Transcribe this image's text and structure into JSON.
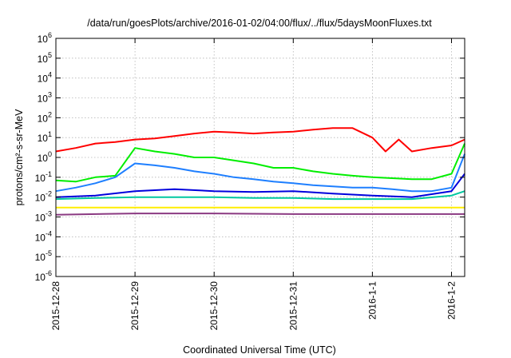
{
  "chart_data": {
    "type": "line",
    "title": "/data/run/goesPlots/archive/2016-01-02/04:00/flux/../flux/5daysMoonFluxes.txt",
    "xlabel": "Coordinated Universal Time (UTC)",
    "ylabel": "protons/cm²-s-sr-MeV",
    "yscale": "log",
    "ylim": [
      1e-06,
      1000000.0
    ],
    "y_ticks": [
      {
        "value": 1e-06,
        "base": "10",
        "exp": "-6"
      },
      {
        "value": 1e-05,
        "base": "10",
        "exp": "-5"
      },
      {
        "value": 0.0001,
        "base": "10",
        "exp": "-4"
      },
      {
        "value": 0.001,
        "base": "10",
        "exp": "-3"
      },
      {
        "value": 0.01,
        "base": "10",
        "exp": "-2"
      },
      {
        "value": 0.1,
        "base": "10",
        "exp": "-1"
      },
      {
        "value": 1.0,
        "base": "10",
        "exp": "0"
      },
      {
        "value": 10.0,
        "base": "10",
        "exp": "1"
      },
      {
        "value": 100.0,
        "base": "10",
        "exp": "2"
      },
      {
        "value": 1000.0,
        "base": "10",
        "exp": "3"
      },
      {
        "value": 10000.0,
        "base": "10",
        "exp": "4"
      },
      {
        "value": 100000.0,
        "base": "10",
        "exp": "5"
      },
      {
        "value": 1000000.0,
        "base": "10",
        "exp": "6"
      }
    ],
    "xlim": [
      "2015-12-28T00:00",
      "2016-01-02T04:00"
    ],
    "x_ticks": [
      {
        "date": "2015-12-28T00:00",
        "label": "2015-12-28"
      },
      {
        "date": "2015-12-29T00:00",
        "label": "2015-12-29"
      },
      {
        "date": "2015-12-30T00:00",
        "label": "2015-12-30"
      },
      {
        "date": "2015-12-31T00:00",
        "label": "2015-12-31"
      },
      {
        "date": "2016-01-01T00:00",
        "label": "2016-1-1"
      },
      {
        "date": "2016-01-02T00:00",
        "label": "2016-1-2"
      }
    ],
    "grid": true,
    "legend": "none",
    "series": [
      {
        "color": "#ff0000",
        "points": [
          [
            "2015-12-28T00:00",
            2
          ],
          [
            "2015-12-28T06:00",
            3
          ],
          [
            "2015-12-28T12:00",
            5
          ],
          [
            "2015-12-28T18:00",
            6
          ],
          [
            "2015-12-29T00:00",
            8
          ],
          [
            "2015-12-29T06:00",
            9
          ],
          [
            "2015-12-29T12:00",
            12
          ],
          [
            "2015-12-29T18:00",
            16
          ],
          [
            "2015-12-30T00:00",
            20
          ],
          [
            "2015-12-30T06:00",
            18
          ],
          [
            "2015-12-30T12:00",
            16
          ],
          [
            "2015-12-30T18:00",
            18
          ],
          [
            "2015-12-31T00:00",
            20
          ],
          [
            "2015-12-31T06:00",
            25
          ],
          [
            "2015-12-31T12:00",
            30
          ],
          [
            "2015-12-31T18:00",
            30
          ],
          [
            "2016-01-01T00:00",
            10
          ],
          [
            "2016-01-01T04:00",
            2
          ],
          [
            "2016-01-01T08:00",
            8
          ],
          [
            "2016-01-01T12:00",
            2
          ],
          [
            "2016-01-01T18:00",
            3
          ],
          [
            "2016-01-02T00:00",
            4
          ],
          [
            "2016-01-02T04:00",
            8
          ]
        ]
      },
      {
        "color": "#00ee00",
        "points": [
          [
            "2015-12-28T00:00",
            0.07
          ],
          [
            "2015-12-28T06:00",
            0.06
          ],
          [
            "2015-12-28T12:00",
            0.1
          ],
          [
            "2015-12-28T18:00",
            0.12
          ],
          [
            "2015-12-29T00:00",
            3
          ],
          [
            "2015-12-29T06:00",
            2
          ],
          [
            "2015-12-29T12:00",
            1.5
          ],
          [
            "2015-12-29T18:00",
            1
          ],
          [
            "2015-12-30T00:00",
            1
          ],
          [
            "2015-12-30T06:00",
            0.7
          ],
          [
            "2015-12-30T12:00",
            0.5
          ],
          [
            "2015-12-30T18:00",
            0.3
          ],
          [
            "2015-12-31T00:00",
            0.3
          ],
          [
            "2015-12-31T06:00",
            0.2
          ],
          [
            "2015-12-31T12:00",
            0.15
          ],
          [
            "2015-12-31T18:00",
            0.12
          ],
          [
            "2016-01-01T00:00",
            0.1
          ],
          [
            "2016-01-01T06:00",
            0.09
          ],
          [
            "2016-01-01T12:00",
            0.08
          ],
          [
            "2016-01-01T18:00",
            0.08
          ],
          [
            "2016-01-02T00:00",
            0.15
          ],
          [
            "2016-01-02T04:00",
            5
          ]
        ]
      },
      {
        "color": "#1e7fff",
        "points": [
          [
            "2015-12-28T00:00",
            0.02
          ],
          [
            "2015-12-28T06:00",
            0.03
          ],
          [
            "2015-12-28T12:00",
            0.05
          ],
          [
            "2015-12-28T18:00",
            0.1
          ],
          [
            "2015-12-29T00:00",
            0.5
          ],
          [
            "2015-12-29T06:00",
            0.4
          ],
          [
            "2015-12-29T12:00",
            0.3
          ],
          [
            "2015-12-29T18:00",
            0.2
          ],
          [
            "2015-12-30T00:00",
            0.15
          ],
          [
            "2015-12-30T06:00",
            0.1
          ],
          [
            "2015-12-30T12:00",
            0.08
          ],
          [
            "2015-12-30T18:00",
            0.06
          ],
          [
            "2015-12-31T00:00",
            0.05
          ],
          [
            "2015-12-31T06:00",
            0.04
          ],
          [
            "2015-12-31T12:00",
            0.035
          ],
          [
            "2015-12-31T18:00",
            0.03
          ],
          [
            "2016-01-01T00:00",
            0.03
          ],
          [
            "2016-01-01T06:00",
            0.025
          ],
          [
            "2016-01-01T12:00",
            0.02
          ],
          [
            "2016-01-01T18:00",
            0.02
          ],
          [
            "2016-01-02T00:00",
            0.03
          ],
          [
            "2016-01-02T04:00",
            1.5
          ]
        ]
      },
      {
        "color": "#0000dd",
        "points": [
          [
            "2015-12-28T00:00",
            0.01
          ],
          [
            "2015-12-28T12:00",
            0.012
          ],
          [
            "2015-12-29T00:00",
            0.02
          ],
          [
            "2015-12-29T12:00",
            0.025
          ],
          [
            "2015-12-30T00:00",
            0.02
          ],
          [
            "2015-12-30T12:00",
            0.018
          ],
          [
            "2015-12-31T00:00",
            0.02
          ],
          [
            "2015-12-31T12:00",
            0.015
          ],
          [
            "2016-01-01T00:00",
            0.012
          ],
          [
            "2016-01-01T12:00",
            0.01
          ],
          [
            "2016-01-02T00:00",
            0.02
          ],
          [
            "2016-01-02T04:00",
            0.15
          ]
        ]
      },
      {
        "color": "#00c8a0",
        "points": [
          [
            "2015-12-28T00:00",
            0.008
          ],
          [
            "2015-12-28T12:00",
            0.009
          ],
          [
            "2015-12-29T00:00",
            0.01
          ],
          [
            "2015-12-29T12:00",
            0.01
          ],
          [
            "2015-12-30T00:00",
            0.01
          ],
          [
            "2015-12-30T12:00",
            0.009
          ],
          [
            "2015-12-31T00:00",
            0.009
          ],
          [
            "2015-12-31T12:00",
            0.008
          ],
          [
            "2016-01-01T00:00",
            0.008
          ],
          [
            "2016-01-01T12:00",
            0.008
          ],
          [
            "2016-01-02T00:00",
            0.012
          ],
          [
            "2016-01-02T04:00",
            0.02
          ]
        ]
      },
      {
        "color": "#ffee00",
        "points": [
          [
            "2015-12-28T00:00",
            0.003
          ],
          [
            "2015-12-29T00:00",
            0.003
          ],
          [
            "2015-12-30T00:00",
            0.003
          ],
          [
            "2015-12-31T00:00",
            0.003
          ],
          [
            "2016-01-01T00:00",
            0.003
          ],
          [
            "2016-01-02T00:00",
            0.003
          ],
          [
            "2016-01-02T04:00",
            0.003
          ]
        ]
      },
      {
        "color": "#8b3a82",
        "points": [
          [
            "2015-12-28T00:00",
            0.0013
          ],
          [
            "2015-12-29T00:00",
            0.0015
          ],
          [
            "2015-12-30T00:00",
            0.0015
          ],
          [
            "2015-12-31T00:00",
            0.0014
          ],
          [
            "2016-01-01T00:00",
            0.0014
          ],
          [
            "2016-01-02T00:00",
            0.0014
          ],
          [
            "2016-01-02T04:00",
            0.0014
          ]
        ]
      }
    ]
  }
}
